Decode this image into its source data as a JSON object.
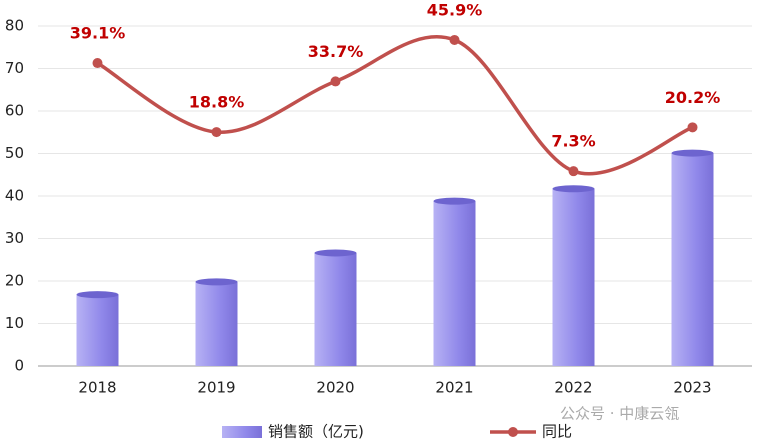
{
  "chart_data": {
    "type": "bar-line",
    "categories": [
      "2018",
      "2019",
      "2020",
      "2021",
      "2022",
      "2023"
    ],
    "series": [
      {
        "name": "销售额（亿元)",
        "type": "bar",
        "color": "#8f86e8",
        "values": [
          16.8,
          19.8,
          26.6,
          38.8,
          41.7,
          50.1
        ]
      },
      {
        "name": "同比",
        "type": "line",
        "axis": "y2",
        "color": "#c0504d",
        "values": [
          39.1,
          18.8,
          33.7,
          45.9,
          7.3,
          20.2
        ],
        "value_labels": [
          "39.1%",
          "18.8%",
          "33.7%",
          "45.9%",
          "7.3%",
          "20.2%"
        ]
      }
    ],
    "ylim": [
      0,
      80
    ],
    "yticks": [
      0,
      10,
      20,
      30,
      40,
      50,
      60,
      70,
      80
    ],
    "y2lim": [
      -50,
      50
    ],
    "grid": true,
    "legend": "bottom",
    "watermark": "公众号 · 中康云瓴"
  }
}
